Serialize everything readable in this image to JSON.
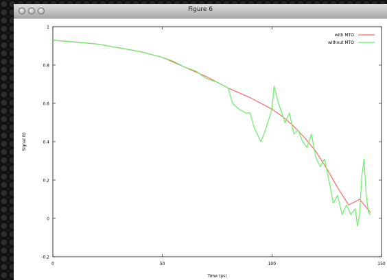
{
  "window": {
    "title": "Figure 6"
  },
  "chart_data": {
    "type": "line",
    "xlabel": "Time (ps)",
    "ylabel": "Signal (t)",
    "xlim": [
      0,
      150
    ],
    "ylim": [
      -0.2,
      1.0
    ],
    "xticks": [
      0,
      50,
      100,
      150
    ],
    "yticks": [
      -0.2,
      0,
      0.2,
      0.4,
      0.6,
      0.8,
      1.0
    ],
    "xtick_labels": [
      "0",
      "50",
      "100",
      "150"
    ],
    "ytick_labels": [
      "-0.2",
      "0",
      "0.2",
      "0.4",
      "0.6",
      "0.8",
      "1"
    ],
    "legend_position": "top-right",
    "series": [
      {
        "name": "with MTO",
        "color": "#ff6666",
        "x": [
          0,
          10,
          20,
          30,
          40,
          50,
          60,
          70,
          80,
          90,
          100,
          105,
          110,
          115,
          120,
          125,
          130,
          135,
          140,
          145
        ],
        "y": [
          0.93,
          0.92,
          0.91,
          0.89,
          0.87,
          0.84,
          0.79,
          0.74,
          0.68,
          0.63,
          0.57,
          0.53,
          0.48,
          0.42,
          0.35,
          0.26,
          0.16,
          0.07,
          0.1,
          0.03
        ]
      },
      {
        "name": "without MTO",
        "color": "#66ee66",
        "x": [
          0,
          10,
          20,
          30,
          40,
          50,
          55,
          60,
          65,
          70,
          75,
          80,
          82,
          85,
          88,
          90,
          92,
          95,
          97,
          100,
          101,
          103,
          106,
          108,
          110,
          112,
          114,
          116,
          118,
          120,
          122,
          124,
          126,
          128,
          130,
          132,
          134,
          136,
          138,
          139,
          140,
          141,
          142,
          143,
          144,
          145
        ],
        "y": [
          0.93,
          0.92,
          0.91,
          0.89,
          0.87,
          0.84,
          0.82,
          0.79,
          0.77,
          0.73,
          0.71,
          0.68,
          0.6,
          0.57,
          0.55,
          0.55,
          0.47,
          0.4,
          0.46,
          0.57,
          0.69,
          0.6,
          0.5,
          0.55,
          0.44,
          0.46,
          0.4,
          0.37,
          0.44,
          0.32,
          0.27,
          0.31,
          0.2,
          0.08,
          0.12,
          0.02,
          0.07,
          0.02,
          0.05,
          -0.04,
          0.02,
          0.22,
          0.31,
          0.13,
          0.03,
          0.02
        ]
      }
    ]
  }
}
